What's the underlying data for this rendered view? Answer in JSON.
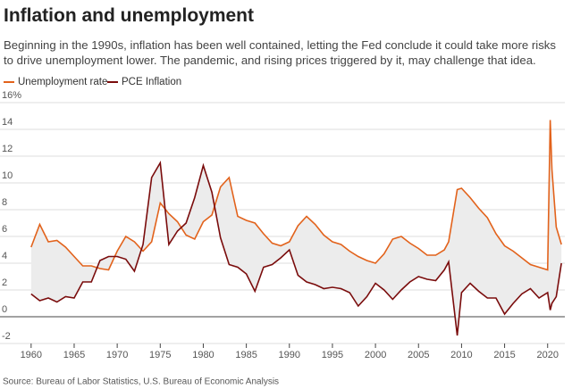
{
  "chart_data": {
    "type": "line",
    "title": "Inflation and unemployment",
    "subtitle": "Beginning in the 1990s, inflation has been well contained, letting the Fed conclude it could take more risks to drive unemployment lower. The pandemic, and rising prices triggered by it, may challenge that idea.",
    "source": "Source: Bureau of Labor Statistics, U.S. Bureau of Economic Analysis",
    "x": [
      1960,
      1961,
      1962,
      1963,
      1964,
      1965,
      1966,
      1967,
      1968,
      1969,
      1970,
      1971,
      1972,
      1973,
      1974,
      1975,
      1976,
      1977,
      1978,
      1979,
      1980,
      1981,
      1982,
      1983,
      1984,
      1985,
      1986,
      1987,
      1988,
      1989,
      1990,
      1991,
      1992,
      1993,
      1994,
      1995,
      1996,
      1997,
      1998,
      1999,
      2000,
      2001,
      2002,
      2003,
      2004,
      2005,
      2006,
      2007,
      2008,
      2008.5,
      2009.5,
      2010,
      2011,
      2012,
      2013,
      2014,
      2015,
      2016,
      2017,
      2018,
      2019,
      2020,
      2020.3,
      2020.5,
      2021,
      2021.6
    ],
    "series": [
      {
        "name": "Unemployment rate",
        "color": "#e2621b",
        "values": [
          5.2,
          6.9,
          5.6,
          5.7,
          5.2,
          4.5,
          3.8,
          3.8,
          3.6,
          3.5,
          4.9,
          6.0,
          5.6,
          4.9,
          5.6,
          8.5,
          7.7,
          7.1,
          6.1,
          5.8,
          7.1,
          7.6,
          9.7,
          10.4,
          7.5,
          7.2,
          7.0,
          6.2,
          5.5,
          5.3,
          5.6,
          6.8,
          7.5,
          6.9,
          6.1,
          5.6,
          5.4,
          4.9,
          4.5,
          4.2,
          4.0,
          4.7,
          5.8,
          6.0,
          5.5,
          5.1,
          4.6,
          4.6,
          5.0,
          5.6,
          9.5,
          9.6,
          8.9,
          8.1,
          7.4,
          6.2,
          5.3,
          4.9,
          4.4,
          3.9,
          3.7,
          3.5,
          14.7,
          11.0,
          6.7,
          5.4
        ]
      },
      {
        "name": "PCE Inflation",
        "color": "#7a0c0c",
        "values": [
          1.7,
          1.2,
          1.4,
          1.1,
          1.5,
          1.4,
          2.6,
          2.6,
          4.2,
          4.5,
          4.5,
          4.3,
          3.4,
          5.4,
          10.4,
          11.5,
          5.4,
          6.4,
          7.0,
          8.9,
          11.3,
          9.3,
          5.9,
          3.9,
          3.7,
          3.2,
          1.9,
          3.7,
          3.9,
          4.4,
          5.0,
          3.1,
          2.6,
          2.4,
          2.1,
          2.2,
          2.1,
          1.8,
          0.8,
          1.5,
          2.5,
          2.0,
          1.3,
          2.0,
          2.6,
          3.0,
          2.8,
          2.7,
          3.5,
          4.1,
          -1.4,
          1.8,
          2.5,
          1.9,
          1.4,
          1.4,
          0.2,
          1.0,
          1.7,
          2.1,
          1.4,
          1.8,
          0.5,
          1.0,
          1.5,
          4.0
        ]
      }
    ],
    "xlim": [
      1959.5,
      2022
    ],
    "xticks": [
      1960,
      1965,
      1970,
      1975,
      1980,
      1985,
      1990,
      1995,
      2000,
      2005,
      2010,
      2015,
      2020
    ],
    "ylim": [
      -2,
      16
    ],
    "yticks": [
      -2,
      0,
      2,
      4,
      6,
      8,
      10,
      12,
      14,
      {
        "value": 16,
        "label": "16%"
      }
    ],
    "grid": true
  }
}
